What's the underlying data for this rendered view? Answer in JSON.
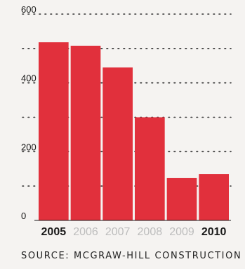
{
  "chart_data": {
    "type": "bar",
    "categories": [
      "2005",
      "2006",
      "2007",
      "2008",
      "2009",
      "2010"
    ],
    "highlighted": [
      "2005",
      "2010"
    ],
    "values": [
      518,
      508,
      445,
      300,
      123,
      135
    ],
    "ylim": [
      0,
      600
    ],
    "yticks": [
      0,
      200,
      400,
      600
    ],
    "minor_gridlines": [
      100,
      300,
      500
    ],
    "grid": "dotted",
    "title": "",
    "xlabel": "",
    "ylabel": ""
  },
  "source": "SOURCE: MCGRAW-HILL CONSTRUCTION",
  "colors": {
    "bar": "#e1303c",
    "highlight_label": "#1a1a1a",
    "muted_label": "#bdbdbd",
    "grid": "#333333",
    "background": "#f5f3f1"
  }
}
